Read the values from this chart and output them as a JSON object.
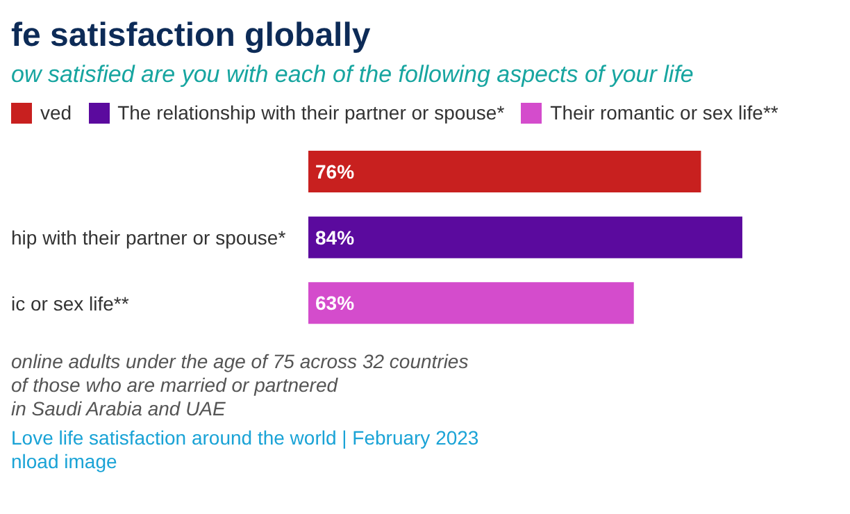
{
  "chart_data": {
    "type": "bar",
    "orientation": "horizontal",
    "stacked": true,
    "title": "fe satisfaction globally",
    "subtitle": "ow satisfied are you with each of the following aspects of your life",
    "categories": [
      null,
      "hip with their partner or spouse*",
      "ic or sex life**"
    ],
    "series": [
      {
        "name": "ved",
        "color": "#c8201f",
        "values": [
          76,
          null,
          null
        ],
        "value_labels": [
          "76%",
          null,
          null
        ]
      },
      {
        "name": "The relationship with their partner or spouse*",
        "color": "#5b0a9e",
        "values": [
          null,
          84,
          null
        ],
        "value_labels": [
          null,
          "84%",
          null
        ]
      },
      {
        "name": "Their romantic or sex life**",
        "color": "#d44ccc",
        "values": [
          null,
          null,
          63
        ],
        "value_labels": [
          null,
          null,
          "63%"
        ]
      }
    ],
    "legend": "top left",
    "annotations": [
      "online adults under the age of 75 across 32 countries",
      "of those who are married or partnered",
      "in Saudi Arabia and UAE",
      "Love life satisfaction around the world | February 2023",
      "nload image"
    ]
  }
}
